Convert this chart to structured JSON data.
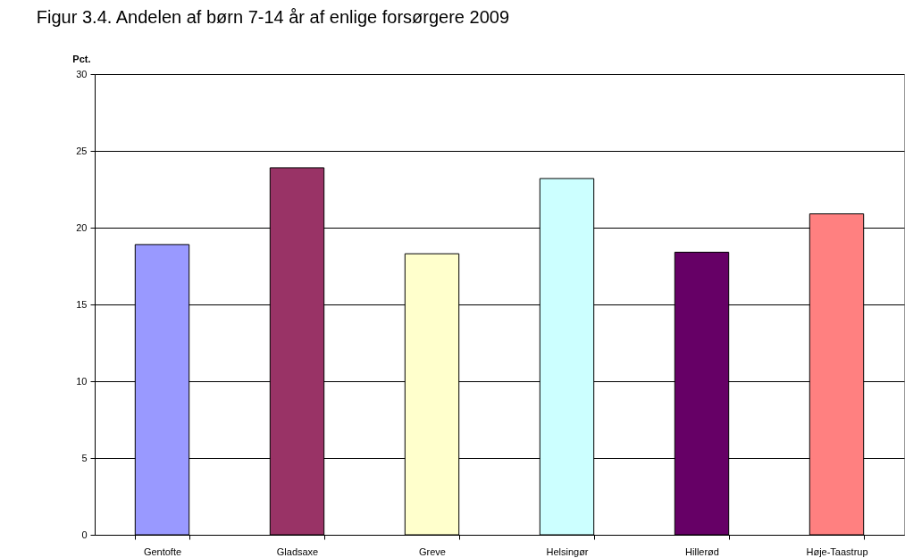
{
  "chart_data": {
    "type": "bar",
    "title": "Figur 3.4. Andelen af børn 7-14 år af enlige forsørgere 2009",
    "ylabel": "Pct.",
    "categories": [
      "Gentofte",
      "Gladsaxe",
      "Greve",
      "Helsingør",
      "Hillerød",
      "Høje-Taastrup"
    ],
    "values": [
      18.9,
      23.9,
      18.3,
      23.2,
      18.4,
      20.9
    ],
    "colors": [
      "#9999ff",
      "#993366",
      "#ffffcc",
      "#ccffff",
      "#660066",
      "#ff8080"
    ],
    "ylim": [
      0,
      30
    ],
    "yticks": [
      0,
      5,
      10,
      15,
      20,
      25,
      30
    ],
    "grid": "y",
    "legend": false
  }
}
